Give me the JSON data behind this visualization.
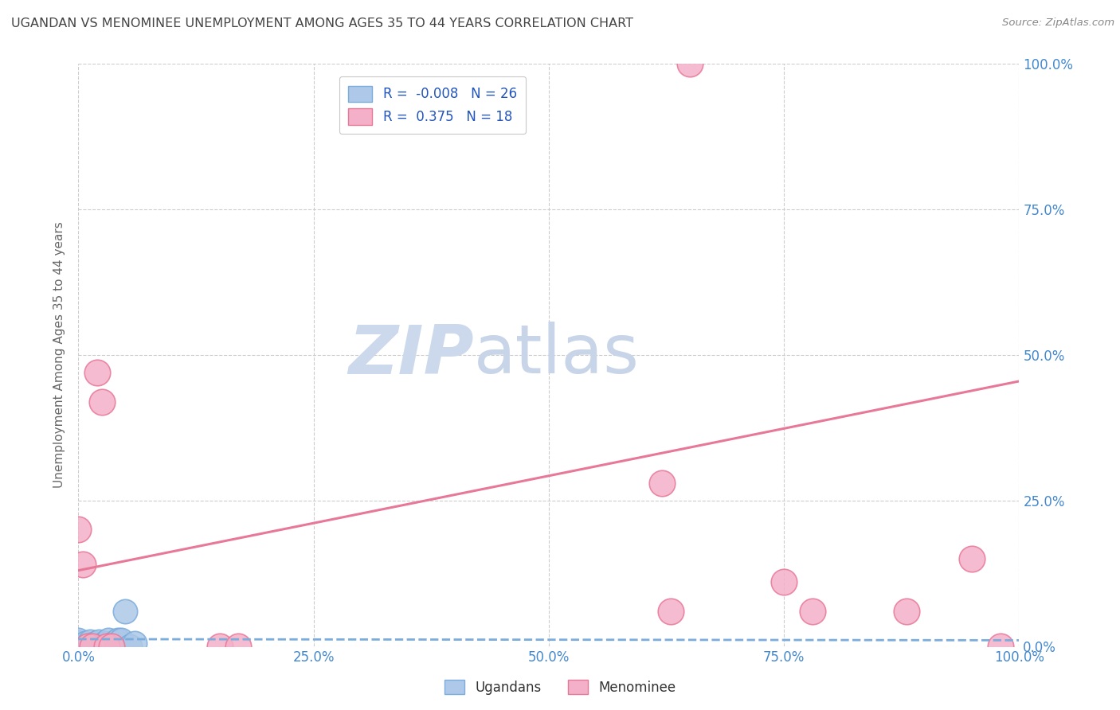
{
  "title": "UGANDAN VS MENOMINEE UNEMPLOYMENT AMONG AGES 35 TO 44 YEARS CORRELATION CHART",
  "source": "Source: ZipAtlas.com",
  "ylabel": "Unemployment Among Ages 35 to 44 years",
  "xlim": [
    0,
    1.0
  ],
  "ylim": [
    0,
    1.0
  ],
  "xticks": [
    0.0,
    0.25,
    0.5,
    0.75,
    1.0
  ],
  "xtick_labels": [
    "0.0%",
    "25.0%",
    "50.0%",
    "75.0%",
    "100.0%"
  ],
  "ytick_labels_right": [
    "0.0%",
    "25.0%",
    "50.0%",
    "75.0%",
    "100.0%"
  ],
  "yticks": [
    0.0,
    0.25,
    0.5,
    0.75,
    1.0
  ],
  "legend_labels": [
    "Ugandans",
    "Menominee"
  ],
  "ugandan_R": -0.008,
  "ugandan_N": 26,
  "menominee_R": 0.375,
  "menominee_N": 18,
  "ugandan_color": "#adc8e8",
  "ugandan_edge_color": "#7aacdc",
  "menominee_color": "#f4b0c8",
  "menominee_edge_color": "#e87898",
  "trend_ugandan_color": "#7aacdc",
  "trend_menominee_color": "#e87898",
  "ugandan_points_x": [
    0.0,
    0.0,
    0.0,
    0.0,
    0.0,
    0.0,
    0.005,
    0.007,
    0.01,
    0.012,
    0.015,
    0.018,
    0.02,
    0.022,
    0.025,
    0.028,
    0.03,
    0.032,
    0.035,
    0.038,
    0.04,
    0.042,
    0.045,
    0.05,
    0.055,
    0.06
  ],
  "ugandan_points_y": [
    0.0,
    0.002,
    0.003,
    0.005,
    0.007,
    0.01,
    0.0,
    0.005,
    0.0,
    0.008,
    0.0,
    0.005,
    0.0,
    0.008,
    0.0,
    0.005,
    0.005,
    0.01,
    0.0,
    0.005,
    0.008,
    0.01,
    0.01,
    0.06,
    0.0,
    0.005
  ],
  "menominee_points_x": [
    0.0,
    0.005,
    0.01,
    0.015,
    0.02,
    0.025,
    0.03,
    0.035,
    0.15,
    0.17,
    0.62,
    0.63,
    0.65,
    0.75,
    0.78,
    0.88,
    0.95,
    0.98
  ],
  "menominee_points_y": [
    0.2,
    0.14,
    0.0,
    0.0,
    0.47,
    0.42,
    0.0,
    0.0,
    0.0,
    0.0,
    0.28,
    0.06,
    1.0,
    0.11,
    0.06,
    0.06,
    0.15,
    0.0
  ],
  "menominee_trend_x0": 0.0,
  "menominee_trend_y0": 0.13,
  "menominee_trend_x1": 1.0,
  "menominee_trend_y1": 0.455,
  "ugandan_trend_x0": 0.0,
  "ugandan_trend_y0": 0.012,
  "ugandan_trend_x1": 1.0,
  "ugandan_trend_y1": 0.01,
  "background_color": "#ffffff",
  "grid_color": "#cccccc",
  "title_color": "#444444",
  "source_color": "#888888",
  "axis_tick_color": "#4488cc",
  "watermark_zip_color": "#ccd8ec",
  "watermark_atlas_color": "#c8d4e8"
}
